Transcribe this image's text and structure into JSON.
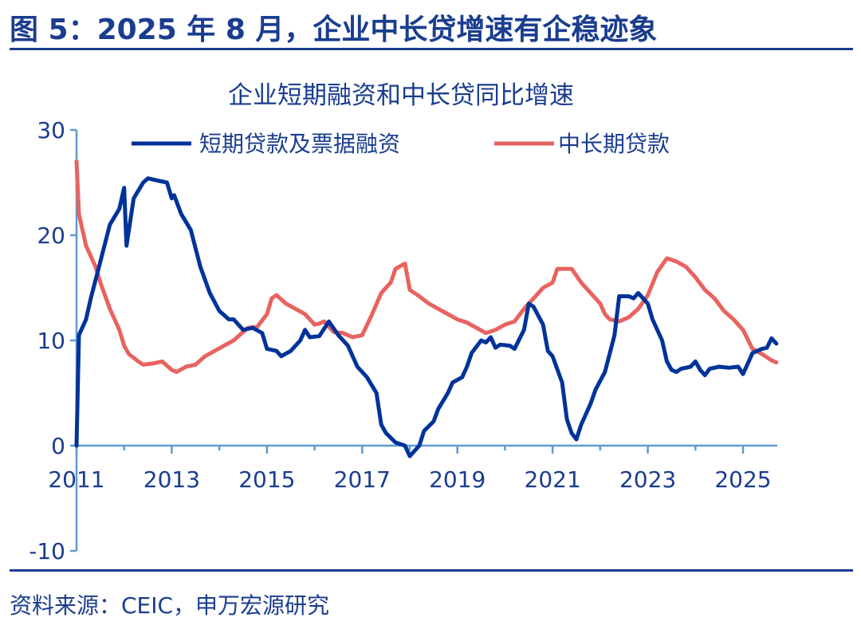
{
  "figure_title": "图 5：2025 年 8 月，企业中长贷增速有企稳迹象",
  "source": "资料来源：CEIC，申万宏源研究",
  "chart_data": {
    "type": "line",
    "title": "企业短期融资和中长贷同比增速",
    "xlabel": "",
    "ylabel": "",
    "xlim": [
      2011,
      2025.75
    ],
    "ylim": [
      -10,
      30
    ],
    "yticks": [
      -10,
      0,
      10,
      20,
      30
    ],
    "xticks": [
      2011,
      2013,
      2015,
      2017,
      2019,
      2021,
      2023,
      2025
    ],
    "legend_position": "top",
    "grid": false,
    "series": [
      {
        "name": "短期贷款及票据融资",
        "color": "#00339a",
        "x": [
          2011.0,
          2011.05,
          2011.2,
          2011.3,
          2011.5,
          2011.7,
          2011.9,
          2012.0,
          2012.05,
          2012.2,
          2012.4,
          2012.5,
          2012.7,
          2012.9,
          2013.0,
          2013.05,
          2013.2,
          2013.4,
          2013.6,
          2013.8,
          2014.0,
          2014.2,
          2014.3,
          2014.5,
          2014.7,
          2014.9,
          2015.0,
          2015.2,
          2015.3,
          2015.5,
          2015.7,
          2015.8,
          2015.9,
          2016.1,
          2016.3,
          2016.5,
          2016.7,
          2016.9,
          2017.1,
          2017.3,
          2017.4,
          2017.5,
          2017.7,
          2017.9,
          2018.0,
          2018.2,
          2018.3,
          2018.5,
          2018.6,
          2018.8,
          2018.9,
          2019.1,
          2019.2,
          2019.3,
          2019.5,
          2019.6,
          2019.7,
          2019.8,
          2019.9,
          2020.1,
          2020.2,
          2020.4,
          2020.5,
          2020.6,
          2020.8,
          2020.9,
          2021.0,
          2021.2,
          2021.3,
          2021.4,
          2021.5,
          2021.6,
          2021.8,
          2021.9,
          2022.1,
          2022.3,
          2022.4,
          2022.6,
          2022.7,
          2022.8,
          2023.0,
          2023.1,
          2023.3,
          2023.4,
          2023.5,
          2023.6,
          2023.7,
          2023.9,
          2024.0,
          2024.1,
          2024.2,
          2024.3,
          2024.5,
          2024.7,
          2024.9,
          2025.0,
          2025.1,
          2025.2,
          2025.4,
          2025.5,
          2025.6,
          2025.7
        ],
        "values": [
          0,
          10.5,
          12,
          14,
          17.5,
          21,
          22.5,
          24.5,
          19,
          23.5,
          25,
          25.4,
          25.2,
          25.0,
          23.5,
          23.8,
          22,
          20.5,
          17,
          14.5,
          12.8,
          12,
          12,
          11,
          11.2,
          10.7,
          9.2,
          9,
          8.5,
          9,
          10,
          11,
          10.3,
          10.4,
          11.8,
          10.5,
          9.5,
          7.5,
          6.5,
          5,
          2,
          1.2,
          0.3,
          0,
          -1,
          0,
          1.4,
          2.3,
          3.5,
          5,
          6,
          6.5,
          7.5,
          8.8,
          10,
          9.8,
          10.3,
          9.3,
          9.6,
          9.5,
          9.2,
          11,
          13.5,
          13.2,
          11.5,
          9,
          8.5,
          6,
          2.5,
          1.2,
          0.6,
          2,
          4,
          5.3,
          7,
          10.5,
          14.2,
          14.2,
          14,
          14.5,
          13.5,
          12,
          10,
          8,
          7.2,
          7,
          7.3,
          7.5,
          8,
          7.2,
          6.7,
          7.3,
          7.5,
          7.4,
          7.5,
          6.8,
          7.8,
          8.8,
          9.2,
          9.3,
          10.2,
          9.7
        ]
      },
      {
        "name": "中长期贷款",
        "color": "#e8635f",
        "x": [
          2011.0,
          2011.05,
          2011.2,
          2011.4,
          2011.5,
          2011.7,
          2011.8,
          2011.9,
          2012.0,
          2012.1,
          2012.3,
          2012.4,
          2012.6,
          2012.8,
          2013.0,
          2013.1,
          2013.3,
          2013.5,
          2013.7,
          2013.9,
          2014.1,
          2014.3,
          2014.5,
          2014.6,
          2014.8,
          2015.0,
          2015.1,
          2015.2,
          2015.4,
          2015.6,
          2015.8,
          2016.0,
          2016.1,
          2016.2,
          2016.4,
          2016.6,
          2016.8,
          2017.0,
          2017.2,
          2017.4,
          2017.6,
          2017.7,
          2017.9,
          2018.0,
          2018.2,
          2018.4,
          2018.6,
          2018.8,
          2019.0,
          2019.2,
          2019.4,
          2019.6,
          2019.8,
          2020.0,
          2020.2,
          2020.4,
          2020.6,
          2020.8,
          2021.0,
          2021.1,
          2021.4,
          2021.6,
          2021.8,
          2022.0,
          2022.1,
          2022.2,
          2022.4,
          2022.6,
          2022.8,
          2023.0,
          2023.2,
          2023.4,
          2023.6,
          2023.8,
          2024.0,
          2024.2,
          2024.4,
          2024.6,
          2024.8,
          2025.0,
          2025.2,
          2025.4,
          2025.6,
          2025.7
        ],
        "values": [
          27,
          22,
          19,
          17,
          15.5,
          13,
          12,
          11,
          9.5,
          8.7,
          8,
          7.7,
          7.8,
          8,
          7.2,
          7,
          7.5,
          7.7,
          8.5,
          9,
          9.5,
          10,
          10.8,
          11.2,
          11.3,
          12.5,
          14,
          14.3,
          13.5,
          13,
          12.5,
          11.5,
          11.6,
          11.8,
          10.8,
          10.7,
          10.3,
          10.5,
          12.4,
          14.5,
          15.5,
          16.8,
          17.3,
          14.8,
          14.2,
          13.5,
          13,
          12.5,
          12,
          11.7,
          11.2,
          10.7,
          11,
          11.5,
          11.8,
          13,
          14,
          15,
          15.5,
          16.8,
          16.8,
          15.5,
          14.5,
          13.5,
          12.5,
          12,
          11.8,
          12.2,
          13,
          14.3,
          16.5,
          17.8,
          17.5,
          17,
          16,
          14.8,
          14,
          12.8,
          12,
          11,
          9.2,
          8.7,
          8.1,
          7.9
        ]
      }
    ]
  }
}
